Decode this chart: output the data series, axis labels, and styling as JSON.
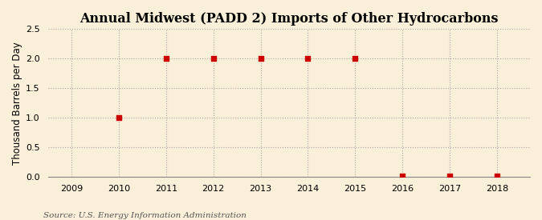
{
  "title": "Annual Midwest (PADD 2) Imports of Other Hydrocarbons",
  "ylabel": "Thousand Barrels per Day",
  "source": "Source: U.S. Energy Information Administration",
  "background_color": "#faefd8",
  "years": [
    2009,
    2010,
    2011,
    2012,
    2013,
    2014,
    2015,
    2016,
    2017,
    2018
  ],
  "values": [
    null,
    1.0,
    2.0,
    2.0,
    2.0,
    2.0,
    2.0,
    0.01,
    0.01,
    0.01
  ],
  "marker_color": "#cc0000",
  "marker_size": 4,
  "ylim": [
    0,
    2.5
  ],
  "yticks": [
    0.0,
    0.5,
    1.0,
    1.5,
    2.0,
    2.5
  ],
  "xlim": [
    2008.5,
    2018.7
  ],
  "xticks": [
    2009,
    2010,
    2011,
    2012,
    2013,
    2014,
    2015,
    2016,
    2017,
    2018
  ],
  "grid_color": "#aaaaaa",
  "title_fontsize": 11.5,
  "axis_label_fontsize": 8.5,
  "tick_fontsize": 8,
  "source_fontsize": 7.5
}
